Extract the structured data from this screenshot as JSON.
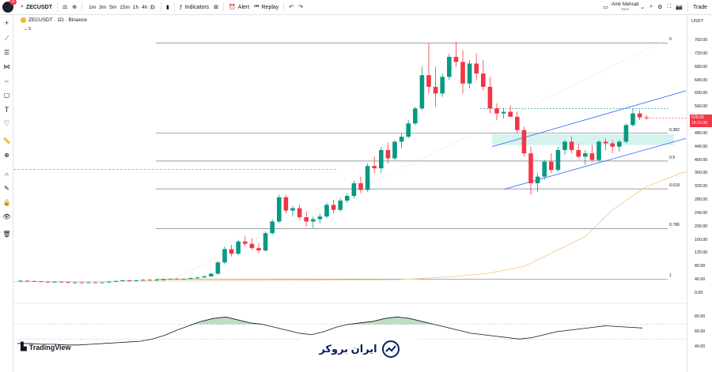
{
  "topbar": {
    "avatar_badge": "11",
    "symbol": "ZECUSDT",
    "intervals": [
      "1m",
      "3m",
      "5m",
      "15m",
      "1h",
      "4h",
      "D"
    ],
    "active_interval": "D",
    "indicators_label": "Indicators",
    "alert_label": "Alert",
    "replay_label": "Replay",
    "user_name": "Amir Mehrad",
    "user_status": "Save",
    "trade_label": "Trade"
  },
  "legend": {
    "title": "ZECUSDT · 1D · Binance",
    "volume_label": "5"
  },
  "price_axis": {
    "currency": "USDT",
    "labels": [
      "760.00",
      "720.00",
      "680.00",
      "640.00",
      "600.00",
      "560.00",
      "520.00",
      "480.00",
      "440.00",
      "400.00",
      "360.00",
      "320.00",
      "280.00",
      "240.00",
      "200.00",
      "160.00",
      "120.00",
      "80.00",
      "40.00",
      "0.00"
    ],
    "last_price": "525.55",
    "countdown": "15:15:39"
  },
  "fib_levels": [
    "0",
    "0.382",
    "0.5",
    "0.618",
    "0.786",
    "1"
  ],
  "rsi_axis": {
    "labels": [
      "80.00",
      "60.00",
      "40.00"
    ]
  },
  "branding": {
    "tradingview": "TradingView",
    "broker": "ایران بروکر"
  },
  "colors": {
    "up": "#089981",
    "down": "#f23645",
    "channel": "#2962ff",
    "ma": "#f7c98c",
    "zone": "#b9ebe5",
    "rsi_fill": "#43a047"
  },
  "chart_data": {
    "type": "candlestick",
    "ylim": [
      0,
      780
    ],
    "candles": [
      [
        36,
        38,
        34,
        37
      ],
      [
        37,
        38,
        35,
        36
      ],
      [
        36,
        37,
        34,
        35
      ],
      [
        35,
        36,
        33,
        34
      ],
      [
        34,
        35,
        32,
        33
      ],
      [
        33,
        35,
        32,
        34
      ],
      [
        34,
        35,
        33,
        33
      ],
      [
        33,
        34,
        31,
        32
      ],
      [
        32,
        33,
        31,
        32
      ],
      [
        32,
        33,
        30,
        31
      ],
      [
        31,
        33,
        30,
        32
      ],
      [
        32,
        33,
        31,
        31
      ],
      [
        31,
        33,
        30,
        32
      ],
      [
        32,
        35,
        31,
        34
      ],
      [
        34,
        37,
        33,
        36
      ],
      [
        36,
        40,
        35,
        38
      ],
      [
        38,
        40,
        35,
        37
      ],
      [
        37,
        39,
        35,
        38
      ],
      [
        38,
        41,
        37,
        40
      ],
      [
        40,
        42,
        38,
        39
      ],
      [
        39,
        41,
        37,
        40
      ],
      [
        40,
        42,
        38,
        41
      ],
      [
        41,
        44,
        40,
        43
      ],
      [
        43,
        45,
        40,
        42
      ],
      [
        42,
        44,
        40,
        43
      ],
      [
        43,
        46,
        41,
        45
      ],
      [
        45,
        48,
        43,
        47
      ],
      [
        47,
        52,
        45,
        50
      ],
      [
        50,
        60,
        48,
        58
      ],
      [
        58,
        95,
        56,
        92
      ],
      [
        92,
        140,
        88,
        132
      ],
      [
        132,
        145,
        110,
        118
      ],
      [
        118,
        160,
        115,
        155
      ],
      [
        155,
        170,
        140,
        148
      ],
      [
        148,
        165,
        130,
        135
      ],
      [
        135,
        150,
        120,
        128
      ],
      [
        128,
        185,
        125,
        180
      ],
      [
        180,
        222,
        175,
        215
      ],
      [
        215,
        295,
        210,
        288
      ],
      [
        288,
        295,
        240,
        248
      ],
      [
        248,
        262,
        230,
        255
      ],
      [
        255,
        265,
        222,
        228
      ],
      [
        228,
        245,
        200,
        215
      ],
      [
        215,
        230,
        195,
        222
      ],
      [
        222,
        238,
        210,
        230
      ],
      [
        230,
        272,
        225,
        265
      ],
      [
        265,
        280,
        240,
        250
      ],
      [
        250,
        285,
        245,
        278
      ],
      [
        278,
        300,
        270,
        292
      ],
      [
        292,
        338,
        285,
        330
      ],
      [
        330,
        350,
        300,
        310
      ],
      [
        310,
        390,
        305,
        382
      ],
      [
        382,
        410,
        360,
        375
      ],
      [
        375,
        440,
        360,
        430
      ],
      [
        430,
        452,
        390,
        405
      ],
      [
        405,
        460,
        400,
        455
      ],
      [
        455,
        480,
        435,
        470
      ],
      [
        470,
        520,
        465,
        510
      ],
      [
        510,
        560,
        505,
        555
      ],
      [
        555,
        680,
        550,
        655
      ],
      [
        655,
        750,
        600,
        620
      ],
      [
        620,
        680,
        560,
        600
      ],
      [
        600,
        660,
        590,
        650
      ],
      [
        650,
        720,
        640,
        710
      ],
      [
        710,
        755,
        680,
        695
      ],
      [
        695,
        730,
        600,
        630
      ],
      [
        630,
        700,
        615,
        690
      ],
      [
        690,
        720,
        640,
        660
      ],
      [
        660,
        700,
        610,
        620
      ],
      [
        620,
        650,
        540,
        555
      ],
      [
        555,
        570,
        520,
        540
      ],
      [
        540,
        555,
        525,
        545
      ],
      [
        545,
        565,
        530,
        530
      ],
      [
        530,
        545,
        480,
        490
      ],
      [
        490,
        500,
        410,
        420
      ],
      [
        420,
        440,
        295,
        330
      ],
      [
        330,
        360,
        305,
        350
      ],
      [
        350,
        400,
        340,
        395
      ],
      [
        395,
        420,
        360,
        370
      ],
      [
        370,
        440,
        365,
        430
      ],
      [
        430,
        460,
        415,
        455
      ],
      [
        455,
        470,
        420,
        430
      ],
      [
        430,
        450,
        405,
        410
      ],
      [
        410,
        430,
        385,
        420
      ],
      [
        420,
        445,
        395,
        400
      ],
      [
        400,
        460,
        395,
        455
      ],
      [
        455,
        465,
        430,
        450
      ],
      [
        450,
        460,
        420,
        440
      ],
      [
        440,
        460,
        425,
        455
      ],
      [
        455,
        510,
        450,
        505
      ],
      [
        505,
        555,
        500,
        540
      ],
      [
        540,
        550,
        520,
        528
      ],
      [
        528,
        535,
        520,
        526
      ]
    ],
    "moving_average": [
      [
        60,
        40
      ],
      [
        65,
        45
      ],
      [
        70,
        50
      ],
      [
        75,
        60
      ],
      [
        80,
        80
      ],
      [
        85,
        120
      ],
      [
        90,
        170
      ],
      [
        95,
        250
      ],
      [
        100,
        320
      ],
      [
        105,
        360
      ],
      [
        110,
        380
      ],
      [
        115,
        400
      ]
    ],
    "rsi": [
      44,
      44,
      43,
      43,
      42,
      42,
      43,
      44,
      45,
      46,
      47,
      50,
      55,
      62,
      68,
      74,
      78,
      80,
      76,
      72,
      70,
      66,
      62,
      58,
      56,
      60,
      66,
      70,
      72,
      74,
      78,
      80,
      78,
      74,
      70,
      66,
      62,
      58,
      56,
      54,
      52,
      50,
      52,
      56,
      60,
      62,
      64,
      66,
      68,
      67,
      66,
      65
    ]
  }
}
